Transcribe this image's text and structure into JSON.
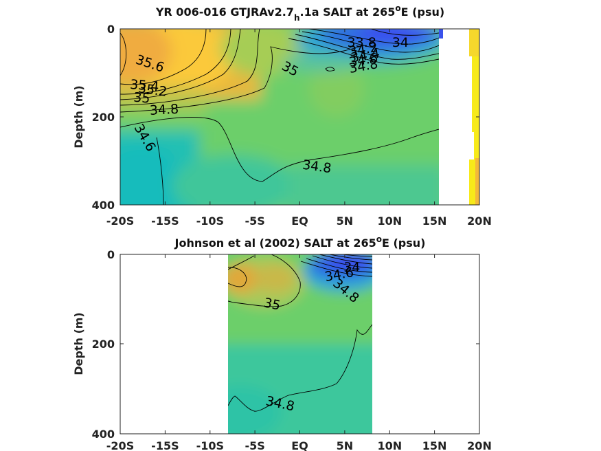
{
  "chart_data": [
    {
      "type": "heatmap",
      "title": "YR 006-016 GTJRAv2.7",
      "title_sub": "h",
      "title_rest": ".1a SALT at 265",
      "title_sup": "o",
      "title_end": "E (psu)",
      "ylabel": "Depth (m)",
      "xlim": [
        -20,
        20
      ],
      "ylim": [
        0,
        400
      ],
      "xticks": [
        "-20S",
        "-15S",
        "-10S",
        "-5S",
        "EQ",
        "5N",
        "10N",
        "15N",
        "20N"
      ],
      "yticks": [
        "0",
        "200",
        "400"
      ],
      "grid": false,
      "colormap": "parula",
      "data_extent_lat": [
        -20,
        15.5
      ],
      "coast_lat": [
        18.5,
        20
      ],
      "contour_labels": [
        {
          "text": "35.6",
          "lat": -16.7,
          "depth": 80,
          "angle": 18
        },
        {
          "text": "35.4",
          "lat": -17.3,
          "depth": 130,
          "angle": 5
        },
        {
          "text": "35.2",
          "lat": -16.4,
          "depth": 140,
          "angle": 8
        },
        {
          "text": "35",
          "lat": -17.6,
          "depth": 158,
          "angle": 5
        },
        {
          "text": "34.8",
          "lat": -15.1,
          "depth": 185,
          "angle": -3
        },
        {
          "text": "34.6",
          "lat": -17.3,
          "depth": 248,
          "angle": 60
        },
        {
          "text": "35",
          "lat": -1.1,
          "depth": 92,
          "angle": 28
        },
        {
          "text": "33.8",
          "lat": 6.9,
          "depth": 32,
          "angle": 0
        },
        {
          "text": "34",
          "lat": 11.2,
          "depth": 32,
          "angle": 0
        },
        {
          "text": "34.2",
          "lat": 7.1,
          "depth": 48,
          "angle": -10
        },
        {
          "text": "34.4",
          "lat": 7.3,
          "depth": 62,
          "angle": -10
        },
        {
          "text": "34.6",
          "lat": 7.1,
          "depth": 72,
          "angle": -10
        },
        {
          "text": "34.8",
          "lat": 7.1,
          "depth": 86,
          "angle": -10
        },
        {
          "text": "34.8",
          "lat": 1.9,
          "depth": 314,
          "angle": 8
        }
      ]
    },
    {
      "type": "heatmap",
      "title": "Johnson et al (2002) SALT at 265",
      "title_sup": "o",
      "title_end": "E (psu)",
      "ylabel": "Depth (m)",
      "xlim": [
        -20,
        20
      ],
      "ylim": [
        0,
        400
      ],
      "xticks": [
        "-20S",
        "-15S",
        "-10S",
        "-5S",
        "EQ",
        "5N",
        "10N",
        "15N",
        "20N"
      ],
      "yticks": [
        "0",
        "200",
        "400"
      ],
      "grid": false,
      "colormap": "parula",
      "data_extent_lat": [
        -8,
        8
      ],
      "contour_labels": [
        {
          "text": "34",
          "lat": 5.8,
          "depth": 30,
          "angle": 0
        },
        {
          "text": "34.6",
          "lat": 4.4,
          "depth": 46,
          "angle": -10
        },
        {
          "text": "34.8",
          "lat": 5.1,
          "depth": 82,
          "angle": 40
        },
        {
          "text": "35",
          "lat": -3.1,
          "depth": 112,
          "angle": 12
        },
        {
          "text": "34.8",
          "lat": -2.2,
          "depth": 334,
          "angle": 12
        }
      ]
    }
  ]
}
